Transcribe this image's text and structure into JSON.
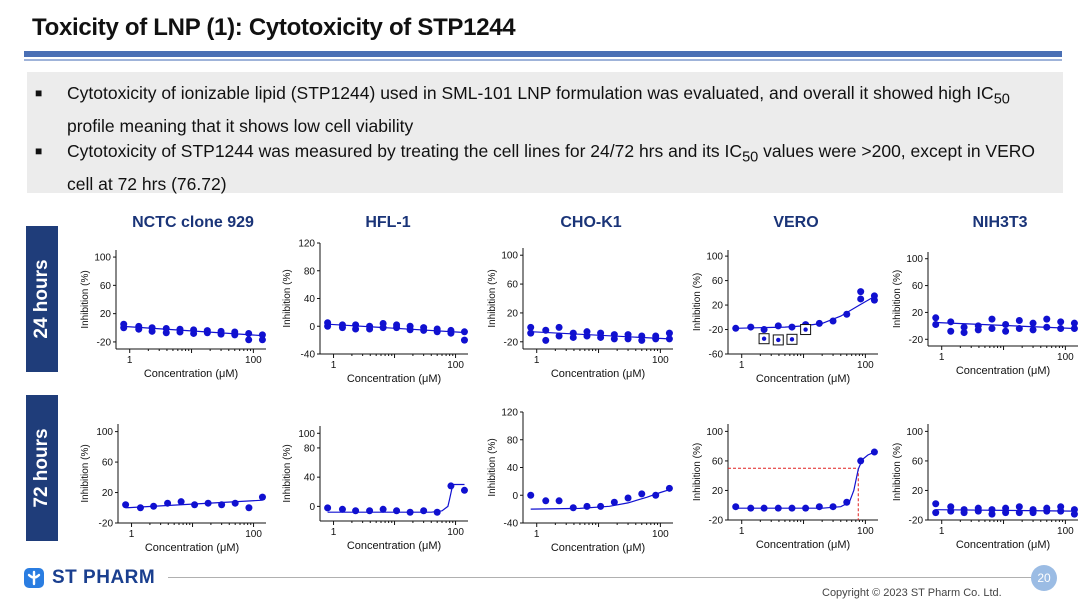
{
  "title": "Toxicity of LNP (1): Cytotoxicity of STP1244",
  "bullets": [
    {
      "text_before": "Cytotoxicity of ionizable lipid (STP1244) used in SML-101 LNP formulation was evaluated, and overall it showed high IC",
      "sub": "50",
      "text_after": " profile meaning that it shows low cell viability"
    },
    {
      "text_before": "Cytotoxicity of STP1244 was measured by treating the cell lines for 24/72 hrs and its IC",
      "sub": "50",
      "text_after": " values were >200, except in VERO cell at 72 hrs (76.72)"
    }
  ],
  "bullet_mark": "■",
  "row_labels": [
    "24 hours",
    "72 hours"
  ],
  "column_titles": [
    "NCTC clone 929",
    "HFL-1",
    "CHO-K1",
    "VERO",
    "NIH3T3"
  ],
  "footer": {
    "logo_text": "ST PHARM",
    "copyright": "Copyright © 2023 ST Pharm Co. Ltd.",
    "page_number": "20"
  },
  "colors": {
    "accent": "#1f3d7a",
    "marker": "#1010d0",
    "ic50_line": "#e02020",
    "title": "#1a3478"
  },
  "chart_data": [
    {
      "type": "scatter",
      "cell_line": "NCTC clone 929",
      "time": "24 hours",
      "xlabel": "Concentration (μM)",
      "ylabel": "Inhibition (%)",
      "x_scale": "log",
      "xlim": [
        0.6,
        160
      ],
      "ylim": [
        -30,
        110
      ],
      "yticks": [
        -20,
        20,
        60,
        100
      ],
      "xticks": [
        1,
        100
      ],
      "x": [
        0.8,
        0.8,
        1.4,
        1.4,
        2.3,
        2.3,
        3.9,
        3.9,
        6.5,
        6.5,
        10.8,
        10.8,
        18,
        18,
        30,
        30,
        50,
        50,
        84,
        84,
        140,
        140
      ],
      "y": [
        5,
        0,
        2,
        -2,
        0,
        -5,
        -1,
        -7,
        -2,
        -6,
        -3,
        -8,
        -4,
        -7,
        -5,
        -9,
        -6,
        -10,
        -8,
        -17,
        -10,
        -17
      ],
      "fit": {
        "x": [
          0.8,
          140
        ],
        "y": [
          2,
          -11
        ]
      }
    },
    {
      "type": "scatter",
      "cell_line": "HFL-1",
      "time": "24 hours",
      "xlabel": "Concentration (μM)",
      "ylabel": "Inhibition (%)",
      "x_scale": "log",
      "xlim": [
        0.6,
        160
      ],
      "ylim": [
        -40,
        120
      ],
      "yticks": [
        -40,
        0,
        40,
        80,
        120
      ],
      "xticks": [
        1,
        100
      ],
      "x": [
        0.8,
        0.8,
        1.4,
        1.4,
        2.3,
        2.3,
        3.9,
        3.9,
        6.5,
        6.5,
        10.8,
        10.8,
        18,
        18,
        30,
        30,
        50,
        50,
        84,
        84,
        140,
        140
      ],
      "y": [
        5,
        0,
        2,
        -2,
        2,
        -4,
        0,
        -4,
        4,
        -2,
        2,
        -2,
        0,
        -5,
        -2,
        -6,
        -4,
        -8,
        -6,
        -10,
        -8,
        -20
      ],
      "fit": {
        "x": [
          0.8,
          140
        ],
        "y": [
          3,
          -9
        ]
      }
    },
    {
      "type": "scatter",
      "cell_line": "CHO-K1",
      "time": "24 hours",
      "xlabel": "Concentration (μM)",
      "ylabel": "Inhibition (%)",
      "x_scale": "log",
      "xlim": [
        0.6,
        160
      ],
      "ylim": [
        -30,
        110
      ],
      "yticks": [
        -20,
        20,
        60,
        100
      ],
      "xticks": [
        1,
        100
      ],
      "x": [
        0.8,
        0.8,
        1.4,
        1.4,
        2.3,
        2.3,
        3.9,
        3.9,
        6.5,
        6.5,
        10.8,
        10.8,
        18,
        18,
        30,
        30,
        50,
        50,
        84,
        84,
        140,
        140
      ],
      "y": [
        0,
        -8,
        -4,
        -18,
        0,
        -12,
        -8,
        -14,
        -6,
        -12,
        -8,
        -14,
        -10,
        -16,
        -10,
        -16,
        -12,
        -18,
        -12,
        -16,
        -8,
        -16
      ],
      "fit": {
        "x": [
          0.8,
          140
        ],
        "y": [
          -6,
          -16
        ]
      }
    },
    {
      "type": "scatter",
      "cell_line": "VERO",
      "time": "24 hours",
      "xlabel": "Concentration (μM)",
      "ylabel": "Inhibition (%)",
      "x_scale": "log",
      "xlim": [
        0.6,
        160
      ],
      "ylim": [
        -60,
        110
      ],
      "yticks": [
        -60,
        -20,
        20,
        60,
        100
      ],
      "xticks": [
        1,
        100
      ],
      "x": [
        0.8,
        1.4,
        2.3,
        3.9,
        6.5,
        10.8,
        18,
        30,
        50,
        84,
        84,
        140,
        140
      ],
      "y": [
        -18,
        -16,
        -20,
        -14,
        -16,
        -12,
        -10,
        -6,
        5,
        30,
        42,
        28,
        35
      ],
      "fit": {
        "x": [
          0.8,
          2,
          5,
          10,
          20,
          40,
          80,
          140
        ],
        "y": [
          -18,
          -17,
          -16,
          -14,
          -10,
          2,
          20,
          34
        ]
      },
      "outliers": {
        "x": [
          2.3,
          3.9,
          6.5,
          10.8
        ],
        "y": [
          -35,
          -37,
          -36,
          -20
        ]
      }
    },
    {
      "type": "scatter",
      "cell_line": "NIH3T3",
      "time": "24 hours",
      "xlabel": "Concentration (μM)",
      "ylabel": "Inhibition (%)",
      "x_scale": "log",
      "xlim": [
        0.6,
        160
      ],
      "ylim": [
        -30,
        110
      ],
      "yticks": [
        -20,
        20,
        60,
        100
      ],
      "xticks": [
        1,
        100
      ],
      "x": [
        0.8,
        0.8,
        1.4,
        1.4,
        2.3,
        2.3,
        3.9,
        3.9,
        6.5,
        6.5,
        10.8,
        10.8,
        18,
        18,
        30,
        30,
        50,
        50,
        84,
        84,
        140,
        140
      ],
      "y": [
        12,
        2,
        6,
        -8,
        -10,
        -2,
        0,
        -6,
        10,
        -4,
        2,
        -8,
        8,
        -4,
        4,
        -6,
        10,
        -2,
        6,
        -4,
        4,
        -4
      ],
      "fit": {
        "x": [
          0.8,
          140
        ],
        "y": [
          5,
          -4
        ]
      }
    },
    {
      "type": "scatter",
      "cell_line": "NCTC clone 929",
      "time": "72 hours",
      "xlabel": "Concentration (μM)",
      "ylabel": "Inhibition (%)",
      "x_scale": "log",
      "xlim": [
        0.6,
        160
      ],
      "ylim": [
        -20,
        110
      ],
      "yticks": [
        -20,
        20,
        60,
        100
      ],
      "xticks": [
        1,
        100
      ],
      "x": [
        0.8,
        1.4,
        2.3,
        3.9,
        6.5,
        10.8,
        18,
        30,
        50,
        84,
        140
      ],
      "y": [
        4,
        0,
        2,
        6,
        8,
        4,
        6,
        4,
        6,
        0,
        14
      ],
      "fit": {
        "x": [
          0.8,
          140
        ],
        "y": [
          0,
          10
        ]
      }
    },
    {
      "type": "scatter",
      "cell_line": "HFL-1",
      "time": "72 hours",
      "xlabel": "Concentration (μM)",
      "ylabel": "Inhibition (%)",
      "x_scale": "log",
      "xlim": [
        0.6,
        160
      ],
      "ylim": [
        -20,
        110
      ],
      "yticks": [
        0,
        40,
        80,
        100
      ],
      "xticks": [
        1,
        100
      ],
      "x": [
        0.8,
        1.4,
        2.3,
        3.9,
        6.5,
        10.8,
        18,
        30,
        50,
        84,
        140
      ],
      "y": [
        -2,
        -4,
        -6,
        -6,
        -4,
        -6,
        -8,
        -6,
        -8,
        28,
        22
      ],
      "fit": {
        "x": [
          0.8,
          40,
          60,
          75,
          80,
          90,
          140
        ],
        "y": [
          -8,
          -8,
          -6,
          0,
          10,
          30,
          30
        ]
      }
    },
    {
      "type": "scatter",
      "cell_line": "CHO-K1",
      "time": "72 hours",
      "xlabel": "Concentration (μM)",
      "ylabel": "Inhibition (%)",
      "x_scale": "log",
      "xlim": [
        0.6,
        160
      ],
      "ylim": [
        -40,
        120
      ],
      "yticks": [
        -40,
        0,
        40,
        80,
        120
      ],
      "xticks": [
        1,
        100
      ],
      "x": [
        0.8,
        1.4,
        2.3,
        3.9,
        6.5,
        10.8,
        18,
        30,
        50,
        84,
        140
      ],
      "y": [
        0,
        -8,
        -8,
        -18,
        -16,
        -16,
        -10,
        -4,
        2,
        0,
        10
      ],
      "fit": {
        "x": [
          0.8,
          5,
          15,
          30,
          60,
          100,
          140
        ],
        "y": [
          -20,
          -19,
          -16,
          -11,
          -3,
          4,
          8
        ]
      }
    },
    {
      "type": "scatter",
      "cell_line": "VERO",
      "time": "72 hours",
      "xlabel": "Concentration (μM)",
      "ylabel": "Inhibition (%)",
      "x_scale": "log",
      "xlim": [
        0.6,
        160
      ],
      "ylim": [
        -20,
        110
      ],
      "yticks": [
        -20,
        20,
        60,
        100
      ],
      "xticks": [
        1,
        100
      ],
      "x": [
        0.8,
        1.4,
        2.3,
        3.9,
        6.5,
        10.8,
        18,
        30,
        50,
        84,
        140
      ],
      "y": [
        -2,
        -4,
        -4,
        -4,
        -4,
        -4,
        -2,
        -2,
        4,
        60,
        72
      ],
      "fit": {
        "x": [
          0.8,
          20,
          40,
          55,
          65,
          76.72,
          90,
          110,
          140
        ],
        "y": [
          -4,
          -4,
          -2,
          4,
          20,
          49,
          62,
          68,
          72
        ]
      },
      "ic50": 76.72
    },
    {
      "type": "scatter",
      "cell_line": "NIH3T3",
      "time": "72 hours",
      "xlabel": "Concentration (μM)",
      "ylabel": "Inhibition (%)",
      "x_scale": "log",
      "xlim": [
        0.6,
        160
      ],
      "ylim": [
        -20,
        110
      ],
      "yticks": [
        -20,
        20,
        60,
        100
      ],
      "xticks": [
        1,
        100
      ],
      "x": [
        0.8,
        0.8,
        1.4,
        1.4,
        2.3,
        2.3,
        3.9,
        3.9,
        6.5,
        6.5,
        10.8,
        10.8,
        18,
        18,
        30,
        30,
        50,
        50,
        84,
        84,
        140,
        140
      ],
      "y": [
        2,
        -10,
        -2,
        -8,
        -6,
        -10,
        -4,
        -8,
        -6,
        -12,
        -4,
        -10,
        -2,
        -10,
        -6,
        -10,
        -4,
        -8,
        -2,
        -8,
        -6,
        -12
      ],
      "fit": {
        "x": [
          0.8,
          140
        ],
        "y": [
          -6,
          -8
        ]
      }
    }
  ]
}
